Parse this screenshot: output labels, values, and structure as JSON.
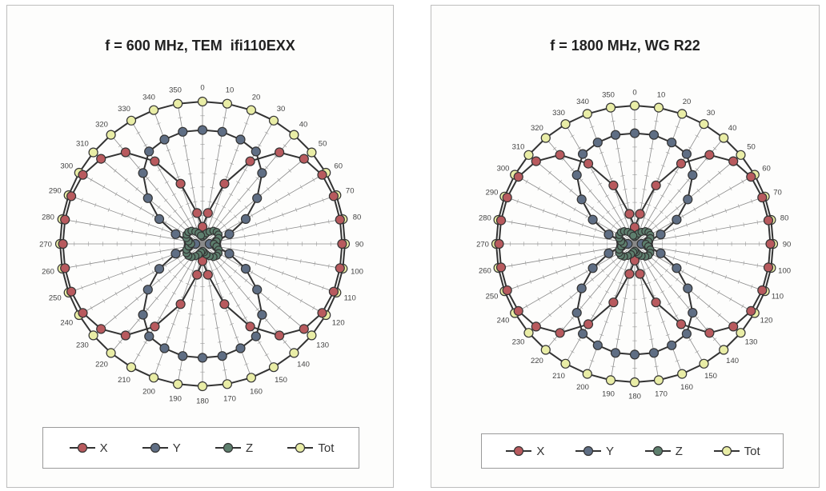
{
  "colors": {
    "X": "#b85a5e",
    "Y": "#5f6e84",
    "Z": "#5e7f6e",
    "Tot": "#e9eda6",
    "line": "#333333"
  },
  "chart_data": [
    {
      "type": "polar-line",
      "title": "f = 600 MHz, TEM  ifi110EXX",
      "angles": [
        0,
        10,
        20,
        30,
        40,
        50,
        60,
        70,
        80,
        90,
        100,
        110,
        120,
        130,
        140,
        150,
        160,
        170,
        180,
        190,
        200,
        210,
        220,
        230,
        240,
        250,
        260,
        270,
        280,
        290,
        300,
        310,
        320,
        330,
        340,
        350
      ],
      "angle_labels": [
        "0",
        "10",
        "20",
        "30",
        "40",
        "50",
        "60",
        "70",
        "80",
        "90",
        "100",
        "110",
        "120",
        "130",
        "140",
        "150",
        "160",
        "170",
        "180",
        "190",
        "200",
        "210",
        "220",
        "230",
        "240",
        "250",
        "260",
        "270",
        "280",
        "290",
        "300",
        "310",
        "320",
        "330",
        "340",
        "350"
      ],
      "rlim": [
        0,
        1
      ],
      "grid": true,
      "legend_position": "bottom",
      "series": [
        {
          "name": "X",
          "values": [
            0.12,
            0.22,
            0.45,
            0.67,
            0.84,
            0.93,
            0.97,
            0.98,
            0.98,
            0.98,
            0.98,
            0.98,
            0.97,
            0.93,
            0.84,
            0.67,
            0.45,
            0.22,
            0.12,
            0.22,
            0.45,
            0.67,
            0.84,
            0.93,
            0.97,
            0.98,
            0.98,
            0.98,
            0.98,
            0.98,
            0.97,
            0.93,
            0.84,
            0.67,
            0.45,
            0.22
          ]
        },
        {
          "name": "Y",
          "values": [
            0.8,
            0.8,
            0.78,
            0.75,
            0.65,
            0.5,
            0.35,
            0.2,
            0.1,
            0.05,
            0.1,
            0.2,
            0.35,
            0.5,
            0.65,
            0.75,
            0.78,
            0.8,
            0.8,
            0.8,
            0.78,
            0.75,
            0.65,
            0.5,
            0.35,
            0.2,
            0.1,
            0.05,
            0.1,
            0.2,
            0.35,
            0.5,
            0.65,
            0.75,
            0.78,
            0.8
          ]
        },
        {
          "name": "Z",
          "values": [
            0.05,
            0.06,
            0.08,
            0.1,
            0.12,
            0.13,
            0.13,
            0.12,
            0.1,
            0.08,
            0.1,
            0.12,
            0.13,
            0.13,
            0.12,
            0.1,
            0.08,
            0.06,
            0.05,
            0.06,
            0.08,
            0.1,
            0.12,
            0.13,
            0.13,
            0.12,
            0.1,
            0.08,
            0.1,
            0.12,
            0.13,
            0.13,
            0.12,
            0.1,
            0.08,
            0.06
          ]
        },
        {
          "name": "Tot",
          "values": [
            1,
            1,
            1,
            1,
            1,
            1,
            1,
            1,
            1,
            1,
            1,
            1,
            1,
            1,
            1,
            1,
            1,
            1,
            1,
            1,
            1,
            1,
            1,
            1,
            1,
            1,
            1,
            1,
            1,
            1,
            1,
            1,
            1,
            1,
            1,
            1
          ]
        }
      ]
    },
    {
      "type": "polar-line",
      "title": "f = 1800 MHz, WG R22",
      "angles": [
        0,
        10,
        20,
        30,
        40,
        50,
        60,
        70,
        80,
        90,
        100,
        110,
        120,
        130,
        140,
        150,
        160,
        170,
        180,
        190,
        200,
        210,
        220,
        230,
        240,
        250,
        260,
        270,
        280,
        290,
        300,
        310,
        320,
        330,
        340,
        350
      ],
      "angle_labels": [
        "0",
        "10",
        "20",
        "30",
        "40",
        "50",
        "60",
        "70",
        "80",
        "90",
        "100",
        "110",
        "120",
        "130",
        "140",
        "150",
        "160",
        "170",
        "180",
        "190",
        "200",
        "210",
        "220",
        "230",
        "240",
        "250",
        "260",
        "270",
        "280",
        "290",
        "300",
        "310",
        "320",
        "330",
        "340",
        "350"
      ],
      "rlim": [
        0,
        1
      ],
      "grid": true,
      "legend_position": "bottom",
      "series": [
        {
          "name": "X",
          "values": [
            0.12,
            0.22,
            0.45,
            0.67,
            0.84,
            0.93,
            0.97,
            0.98,
            0.98,
            0.98,
            0.98,
            0.98,
            0.97,
            0.93,
            0.84,
            0.67,
            0.45,
            0.22,
            0.12,
            0.22,
            0.45,
            0.67,
            0.84,
            0.93,
            0.97,
            0.98,
            0.98,
            0.98,
            0.98,
            0.98,
            0.97,
            0.93,
            0.84,
            0.67,
            0.45,
            0.22
          ]
        },
        {
          "name": "Y",
          "values": [
            0.8,
            0.8,
            0.78,
            0.75,
            0.65,
            0.5,
            0.35,
            0.2,
            0.1,
            0.05,
            0.1,
            0.2,
            0.35,
            0.5,
            0.65,
            0.75,
            0.78,
            0.8,
            0.8,
            0.8,
            0.78,
            0.75,
            0.65,
            0.5,
            0.35,
            0.2,
            0.1,
            0.05,
            0.1,
            0.2,
            0.35,
            0.5,
            0.65,
            0.75,
            0.78,
            0.8
          ]
        },
        {
          "name": "Z",
          "values": [
            0.05,
            0.06,
            0.08,
            0.1,
            0.12,
            0.13,
            0.13,
            0.12,
            0.1,
            0.08,
            0.1,
            0.12,
            0.13,
            0.13,
            0.12,
            0.1,
            0.08,
            0.06,
            0.05,
            0.06,
            0.08,
            0.1,
            0.12,
            0.13,
            0.13,
            0.12,
            0.1,
            0.08,
            0.1,
            0.12,
            0.13,
            0.13,
            0.12,
            0.1,
            0.08,
            0.06
          ]
        },
        {
          "name": "Tot",
          "values": [
            1,
            1,
            1,
            1,
            1,
            1,
            1,
            1,
            1,
            1,
            1,
            1,
            1,
            1,
            1,
            1,
            1,
            1,
            1,
            1,
            1,
            1,
            1,
            1,
            1,
            1,
            1,
            1,
            1,
            1,
            1,
            1,
            1,
            1,
            1,
            1
          ]
        }
      ]
    }
  ]
}
